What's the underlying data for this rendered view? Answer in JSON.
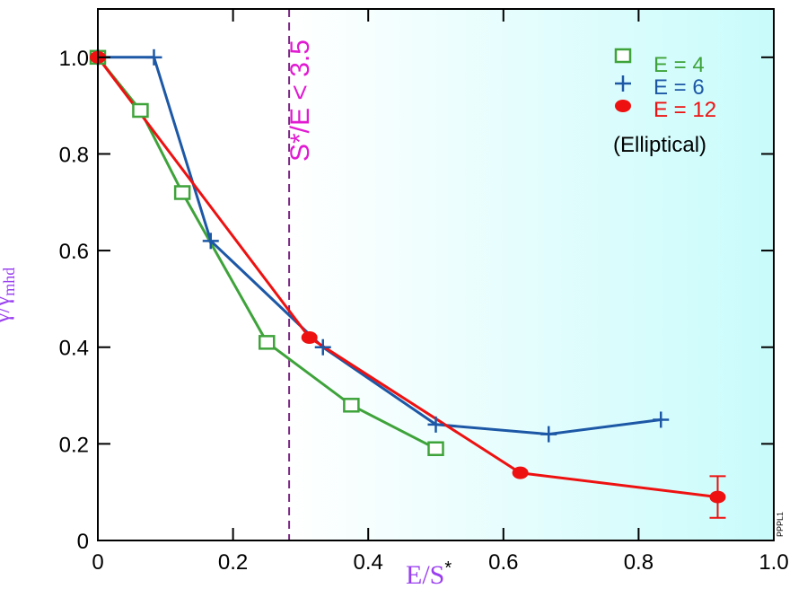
{
  "chart_data": {
    "type": "line",
    "title": "",
    "xlabel": {
      "main": "E/S",
      "sup": "*"
    },
    "ylabel": "γ/γmhd",
    "ylabel_parts": {
      "main": "γ/γ",
      "sub": "mhd"
    },
    "xlim": [
      0,
      1.0
    ],
    "ylim": [
      0,
      1.1
    ],
    "xticks": [
      0,
      0.2,
      0.4,
      0.6,
      0.8,
      1.0
    ],
    "xtick_labels": [
      "0",
      "0.2",
      "0.4",
      "0.6",
      "0.8",
      "1.0"
    ],
    "yticks": [
      0,
      0.2,
      0.4,
      0.6,
      0.8,
      1.0
    ],
    "ytick_labels": [
      "0",
      "0.2",
      "0.4",
      "0.6",
      "0.8",
      "1.0"
    ],
    "grid": false,
    "legend_placement": "top-right",
    "legend_note": "(Elliptical)",
    "annotation": {
      "text": "S*/E < 3.5",
      "x": 0.283,
      "color": "#e11ad2",
      "line_color": "#7b2a85"
    },
    "shaded_region": {
      "from_x": 0.283,
      "to_x": 1.0,
      "color": "#c9fbfb"
    },
    "watermark": "PPPL1",
    "series": [
      {
        "name": "E = 4",
        "color": "#3ea33a",
        "marker": "square",
        "x": [
          0.0,
          0.063,
          0.125,
          0.25,
          0.375,
          0.5
        ],
        "y": [
          1.0,
          0.89,
          0.72,
          0.41,
          0.28,
          0.19
        ]
      },
      {
        "name": "E = 6",
        "color": "#1d58a6",
        "marker": "plus",
        "x": [
          0.0,
          0.083,
          0.167,
          0.333,
          0.5,
          0.667,
          0.833
        ],
        "y": [
          1.0,
          1.0,
          0.62,
          0.4,
          0.24,
          0.22,
          0.25
        ]
      },
      {
        "name": "E = 12",
        "color": "#ee1111",
        "marker": "circle",
        "x": [
          0.0,
          0.313,
          0.625,
          0.917
        ],
        "y": [
          1.0,
          0.42,
          0.14,
          0.09
        ],
        "error_bars": [
          null,
          null,
          null,
          0.043
        ]
      }
    ]
  }
}
